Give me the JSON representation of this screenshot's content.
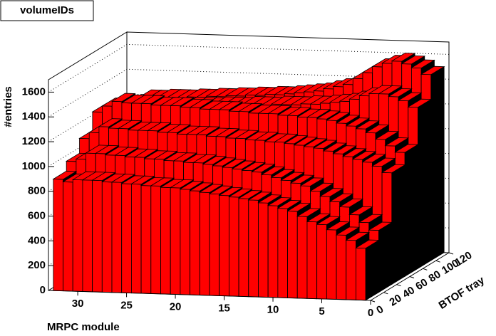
{
  "chart_data": {
    "type": "lego",
    "title": "volumeIDs",
    "xlabel": "MRPC module",
    "ylabel": "BTOF tray",
    "zlabel": "#entries",
    "x": [
      1,
      2,
      3,
      4,
      5,
      6,
      7,
      8,
      9,
      10,
      11,
      12,
      13,
      14,
      15,
      16,
      17,
      18,
      19,
      20,
      21,
      22,
      23,
      24,
      25,
      26,
      27,
      28,
      29,
      30,
      31,
      32
    ],
    "ybins": [
      0,
      20,
      40,
      60,
      80,
      100,
      120
    ],
    "values": [
      [
        420,
        480,
        520,
        560,
        600,
        620,
        660,
        700,
        720,
        740,
        760,
        780,
        790,
        800,
        810,
        820,
        830,
        840,
        850,
        860,
        860,
        870,
        870,
        880,
        880,
        890,
        890,
        900,
        900,
        900,
        880,
        900
      ],
      [
        500,
        560,
        620,
        680,
        720,
        760,
        800,
        840,
        860,
        880,
        900,
        920,
        940,
        950,
        960,
        970,
        980,
        990,
        1000,
        1000,
        1010,
        1010,
        1020,
        1020,
        1030,
        1030,
        1040,
        1040,
        1050,
        1050,
        1000,
        980
      ],
      [
        900,
        950,
        980,
        1000,
        1020,
        1040,
        1060,
        1080,
        1090,
        1100,
        1110,
        1120,
        1120,
        1130,
        1130,
        1140,
        1140,
        1150,
        1150,
        1160,
        1160,
        1160,
        1170,
        1170,
        1180,
        1180,
        1180,
        1190,
        1190,
        1200,
        1150,
        1100
      ],
      [
        1000,
        1050,
        1100,
        1150,
        1180,
        1200,
        1220,
        1240,
        1250,
        1260,
        1260,
        1270,
        1270,
        1280,
        1280,
        1280,
        1290,
        1290,
        1300,
        1300,
        1300,
        1310,
        1310,
        1320,
        1320,
        1320,
        1330,
        1330,
        1330,
        1340,
        1300,
        1250
      ],
      [
        1300,
        1350,
        1380,
        1400,
        1400,
        1380,
        1350,
        1330,
        1320,
        1310,
        1300,
        1300,
        1290,
        1290,
        1290,
        1280,
        1280,
        1280,
        1270,
        1270,
        1270,
        1260,
        1260,
        1260,
        1250,
        1250,
        1250,
        1240,
        1240,
        1240,
        1200,
        1150
      ],
      [
        1500,
        1550,
        1580,
        1600,
        1580,
        1550,
        1500,
        1450,
        1400,
        1380,
        1360,
        1340,
        1330,
        1320,
        1310,
        1300,
        1300,
        1290,
        1290,
        1280,
        1280,
        1270,
        1270,
        1260,
        1260,
        1250,
        1250,
        1250,
        1240,
        1240,
        1200,
        1150
      ]
    ],
    "xlim": [
      0,
      33
    ],
    "xticks": [
      0,
      5,
      10,
      15,
      20,
      25,
      30
    ],
    "ylim": [
      0,
      120
    ],
    "yticks": [
      0,
      20,
      40,
      60,
      80,
      100,
      120
    ],
    "zlim": [
      0,
      1700
    ],
    "zticks": [
      0,
      200,
      400,
      600,
      800,
      1000,
      1200,
      1400,
      1600
    ],
    "color": "#ff0000",
    "grid": true
  }
}
